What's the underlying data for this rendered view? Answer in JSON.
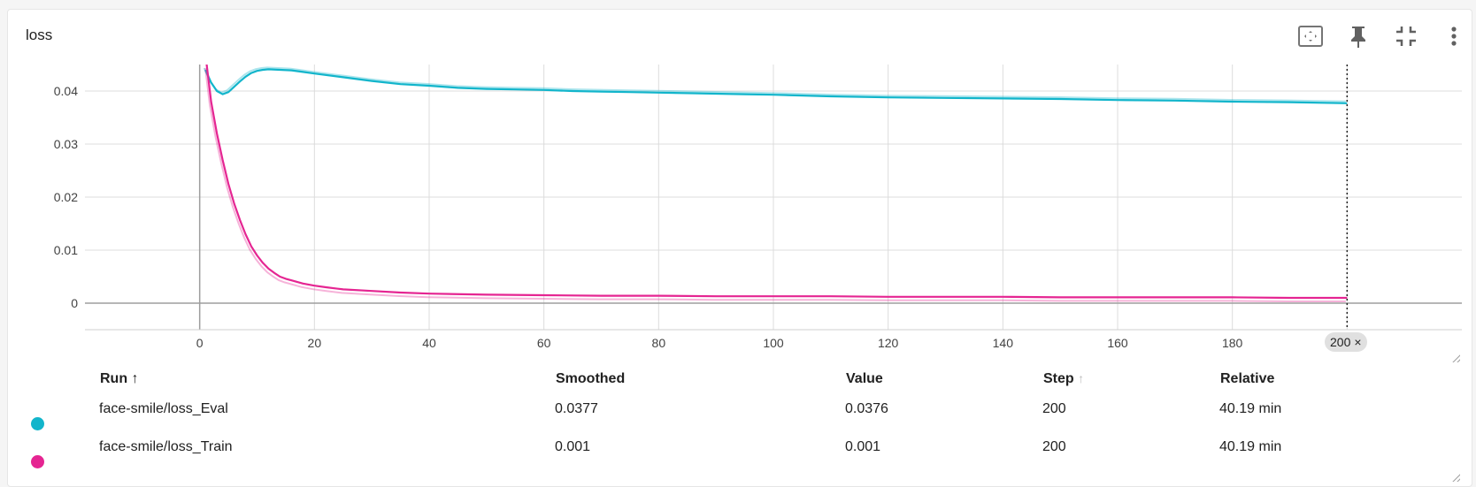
{
  "card": {
    "title": "loss",
    "toolbar": [
      {
        "icon": "fit-domain-icon"
      },
      {
        "icon": "pin-icon"
      },
      {
        "icon": "collapse-icon"
      },
      {
        "icon": "more-vert-icon"
      }
    ]
  },
  "chart_data": {
    "type": "line",
    "title": "",
    "xlabel": "",
    "ylabel": "",
    "xlim": [
      -20,
      220
    ],
    "ylim": [
      -0.005,
      0.045
    ],
    "x_ticks": [
      "0",
      "20",
      "40",
      "60",
      "80",
      "100",
      "120",
      "140",
      "160",
      "180",
      "200"
    ],
    "y_ticks": [
      "0",
      "0.01",
      "0.02",
      "0.03",
      "0.04"
    ],
    "grid": true,
    "cursor_step": 200,
    "series": [
      {
        "name": "face-smile/loss_Eval",
        "color": "#12b5cb",
        "x": [
          1,
          2,
          3,
          4,
          5,
          6,
          7,
          8,
          9,
          10,
          11,
          12,
          14,
          16,
          18,
          20,
          25,
          30,
          35,
          40,
          45,
          50,
          55,
          60,
          65,
          70,
          75,
          80,
          85,
          90,
          95,
          100,
          110,
          120,
          130,
          140,
          150,
          160,
          170,
          180,
          190,
          200
        ],
        "values": [
          0.044,
          0.0416,
          0.04,
          0.0394,
          0.0398,
          0.0408,
          0.0418,
          0.0427,
          0.0434,
          0.0438,
          0.044,
          0.0441,
          0.044,
          0.0439,
          0.0436,
          0.0433,
          0.0426,
          0.0419,
          0.0413,
          0.041,
          0.0406,
          0.0404,
          0.0403,
          0.0402,
          0.04,
          0.0399,
          0.0398,
          0.0397,
          0.0396,
          0.0395,
          0.0394,
          0.0393,
          0.039,
          0.0388,
          0.0387,
          0.0386,
          0.0385,
          0.0383,
          0.0382,
          0.038,
          0.0379,
          0.0377
        ]
      },
      {
        "name": "face-smile/loss_Train",
        "color": "#e52592",
        "x": [
          1,
          2,
          3,
          4,
          5,
          6,
          7,
          8,
          9,
          10,
          11,
          12,
          13,
          14,
          15,
          16,
          18,
          20,
          22,
          25,
          30,
          35,
          40,
          50,
          60,
          70,
          80,
          90,
          100,
          110,
          120,
          130,
          140,
          150,
          160,
          170,
          180,
          190,
          200
        ],
        "values": [
          0.047,
          0.038,
          0.032,
          0.027,
          0.0225,
          0.0188,
          0.0157,
          0.013,
          0.0107,
          0.009,
          0.0076,
          0.0065,
          0.0057,
          0.005,
          0.0046,
          0.0043,
          0.0037,
          0.0033,
          0.003,
          0.0026,
          0.0023,
          0.002,
          0.0018,
          0.0016,
          0.0015,
          0.0014,
          0.0014,
          0.0013,
          0.0013,
          0.0013,
          0.0012,
          0.0012,
          0.0012,
          0.0011,
          0.0011,
          0.0011,
          0.0011,
          0.001,
          0.001
        ]
      }
    ]
  },
  "chip": {
    "label": "200",
    "close": "×"
  },
  "table": {
    "headers": {
      "run": "Run ↑",
      "smoothed": "Smoothed",
      "value": "Value",
      "step": "Step",
      "relative": "Relative"
    },
    "rows": [
      {
        "run": "face-smile/loss_Eval",
        "smoothed": "0.0377",
        "value": "0.0376",
        "step": "200",
        "relative": "40.19 min",
        "color": "#12b5cb"
      },
      {
        "run": "face-smile/loss_Train",
        "smoothed": "0.001",
        "value": "0.001",
        "step": "200",
        "relative": "40.19 min",
        "color": "#e52592"
      }
    ]
  }
}
